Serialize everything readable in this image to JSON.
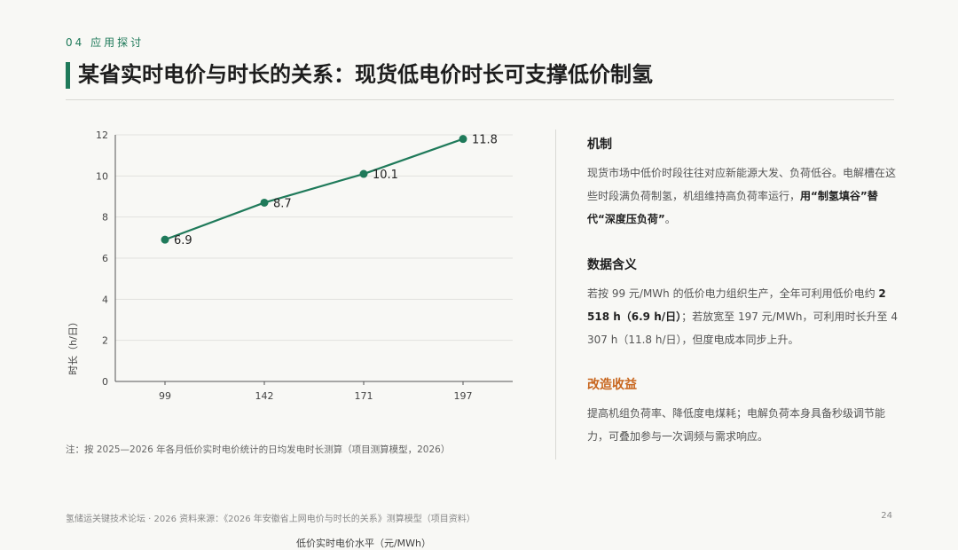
{
  "header": {
    "section": "04 应用探讨",
    "title": "某省实时电价与时长的关系：现货低电价时长可支撑低价制氢"
  },
  "chart_data": {
    "type": "line",
    "categories": [
      "99",
      "142",
      "171",
      "197"
    ],
    "values": [
      6.9,
      8.7,
      10.1,
      11.8
    ],
    "data_labels": [
      "6.9",
      "8.7",
      "10.1",
      "11.8"
    ],
    "xlabel": "低价实时电价水平（元/MWh）",
    "ylabel": "时长（h/日）",
    "ylim": [
      0,
      12
    ],
    "yticks": [
      0,
      2,
      4,
      6,
      8,
      10,
      12
    ],
    "grid": true,
    "color": "#1f7a5a"
  },
  "chart_note": "注：按 2025—2026 年各月低价实时电价统计的日均发电时长测算（项目测算模型，2026）",
  "panels": [
    {
      "heading": "机制",
      "text_plain": "现货市场中低价时段往往对应新能源大发、负荷低谷。电解槽在这些时段满负荷制氢，机组维持高负荷率运行，",
      "text_bold": "用“制氢填谷”替代“深度压负荷”",
      "text_tail": "。"
    },
    {
      "heading": "数据含义",
      "text_plain": "若按 99 元/MWh 的低价电力组织生产，全年可利用低价电约 ",
      "text_bold": "2 518 h（6.9 h/日）",
      "text_tail": "；若放宽至 197 元/MWh，可利用时长升至 4 307 h（11.8 h/日），但度电成本同步上升。"
    },
    {
      "heading": "改造收益",
      "text_plain": "提高机组负荷率、降低度电煤耗；电解负荷本身具备秒级调节能力，可叠加参与一次调频与需求响应。",
      "text_bold": "",
      "text_tail": ""
    }
  ],
  "footer": {
    "source": "氢储运关键技术论坛 · 2026    资料来源：《2026 年安徽省上网电价与时长的关系》测算模型（项目资料）",
    "page": "24"
  }
}
